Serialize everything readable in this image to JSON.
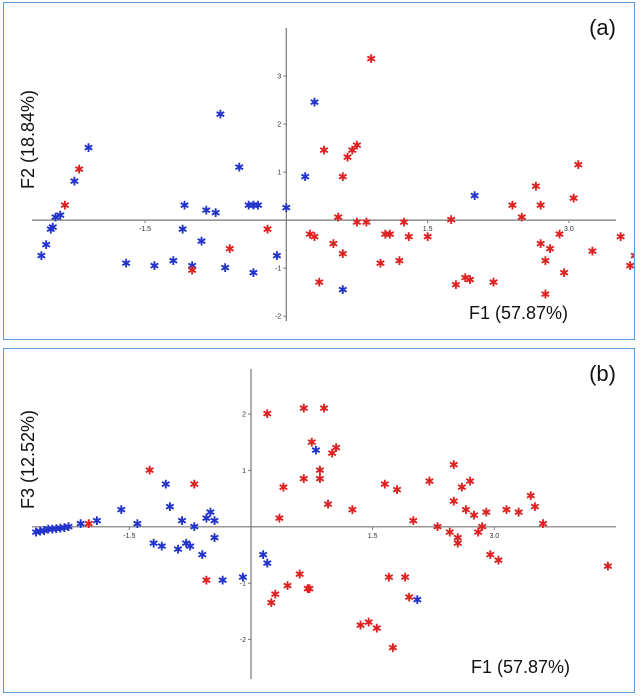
{
  "chart_data": [
    {
      "type": "scatter",
      "panel_label": "(a)",
      "xlabel": "F1 (57.87%)",
      "ylabel": "F2 (18.84%)",
      "xlim": [
        -2.7,
        3.5
      ],
      "ylim": [
        -2.1,
        4.0
      ],
      "x_ticks": [
        -1.5,
        1.5,
        3.0
      ],
      "y_ticks": [
        -2,
        -1,
        1,
        2,
        3
      ],
      "grid": false,
      "series": [
        {
          "color": "#2233cc",
          "points": [
            [
              -2.6,
              -0.75
            ],
            [
              -2.55,
              -0.52
            ],
            [
              -2.5,
              -0.2
            ],
            [
              -2.48,
              -0.15
            ],
            [
              -2.45,
              0.05
            ],
            [
              -2.4,
              0.1
            ],
            [
              -2.25,
              0.8
            ],
            [
              -2.1,
              1.5
            ],
            [
              -1.7,
              -0.9
            ],
            [
              -1.4,
              -0.95
            ],
            [
              -1.2,
              -0.85
            ],
            [
              -1.1,
              -0.2
            ],
            [
              -1.08,
              0.3
            ],
            [
              -1.0,
              -0.95
            ],
            [
              -0.9,
              -0.45
            ],
            [
              -0.85,
              0.2
            ],
            [
              -0.75,
              0.15
            ],
            [
              -0.7,
              2.2
            ],
            [
              -0.65,
              -1.0
            ],
            [
              -0.5,
              1.1
            ],
            [
              -0.4,
              0.3
            ],
            [
              -0.35,
              0.3
            ],
            [
              -0.3,
              0.3
            ],
            [
              -0.35,
              -1.1
            ],
            [
              -0.1,
              -0.75
            ],
            [
              0.0,
              0.25
            ],
            [
              0.2,
              0.9
            ],
            [
              0.3,
              2.45
            ],
            [
              0.6,
              -1.45
            ],
            [
              2.0,
              0.5
            ]
          ]
        },
        {
          "color": "#dd2222",
          "points": [
            [
              -2.35,
              0.3
            ],
            [
              -2.2,
              1.05
            ],
            [
              -1.0,
              -1.05
            ],
            [
              -0.6,
              -0.6
            ],
            [
              -0.2,
              -0.2
            ],
            [
              0.25,
              -0.3
            ],
            [
              0.3,
              -0.35
            ],
            [
              0.35,
              -1.3
            ],
            [
              0.4,
              1.45
            ],
            [
              0.5,
              -0.5
            ],
            [
              0.55,
              0.05
            ],
            [
              0.6,
              -0.7
            ],
            [
              0.6,
              0.9
            ],
            [
              0.65,
              1.3
            ],
            [
              0.7,
              1.45
            ],
            [
              0.75,
              1.55
            ],
            [
              0.75,
              -0.05
            ],
            [
              0.85,
              -0.05
            ],
            [
              0.9,
              3.35
            ],
            [
              1.0,
              -0.9
            ],
            [
              1.05,
              -0.3
            ],
            [
              1.1,
              -0.3
            ],
            [
              1.2,
              -0.85
            ],
            [
              1.25,
              -0.05
            ],
            [
              1.3,
              -0.35
            ],
            [
              1.5,
              -0.35
            ],
            [
              1.75,
              0.0
            ],
            [
              1.8,
              -1.35
            ],
            [
              1.9,
              -1.2
            ],
            [
              1.95,
              -1.25
            ],
            [
              2.2,
              -1.3
            ],
            [
              2.4,
              0.3
            ],
            [
              2.5,
              0.05
            ],
            [
              2.65,
              0.7
            ],
            [
              2.7,
              0.3
            ],
            [
              2.7,
              -0.5
            ],
            [
              2.75,
              -0.85
            ],
            [
              2.75,
              -1.55
            ],
            [
              2.8,
              -0.6
            ],
            [
              2.9,
              -0.3
            ],
            [
              2.95,
              -1.1
            ],
            [
              3.05,
              0.45
            ],
            [
              3.1,
              1.15
            ],
            [
              3.25,
              -0.65
            ],
            [
              3.55,
              -0.35
            ],
            [
              3.65,
              -0.95
            ],
            [
              3.7,
              -0.75
            ],
            [
              3.75,
              -0.7
            ]
          ]
        }
      ]
    },
    {
      "type": "scatter",
      "panel_label": "(b)",
      "xlabel": "F1 (57.87%)",
      "ylabel": "F3 (12.52%)",
      "xlim": [
        -2.7,
        4.5
      ],
      "ylim": [
        -2.7,
        2.8
      ],
      "x_ticks": [
        -1.5,
        1.5,
        3.0
      ],
      "y_ticks": [
        -2,
        -1,
        1,
        2
      ],
      "grid": false,
      "series": [
        {
          "color": "#2233cc",
          "points": [
            [
              -2.65,
              -0.1
            ],
            [
              -2.6,
              -0.08
            ],
            [
              -2.55,
              -0.07
            ],
            [
              -2.5,
              -0.05
            ],
            [
              -2.45,
              -0.05
            ],
            [
              -2.4,
              -0.04
            ],
            [
              -2.35,
              -0.03
            ],
            [
              -2.3,
              -0.02
            ],
            [
              -2.25,
              0.0
            ],
            [
              -2.1,
              0.05
            ],
            [
              -1.9,
              0.1
            ],
            [
              -1.6,
              0.3
            ],
            [
              -1.4,
              0.05
            ],
            [
              -1.2,
              -0.3
            ],
            [
              -1.1,
              -0.35
            ],
            [
              -1.05,
              0.75
            ],
            [
              -1.0,
              0.35
            ],
            [
              -0.9,
              -0.4
            ],
            [
              -0.85,
              0.1
            ],
            [
              -0.8,
              -0.3
            ],
            [
              -0.75,
              -0.35
            ],
            [
              -0.7,
              0.0
            ],
            [
              -0.6,
              -0.5
            ],
            [
              -0.55,
              0.15
            ],
            [
              -0.5,
              0.25
            ],
            [
              -0.45,
              -0.2
            ],
            [
              -0.45,
              0.1
            ],
            [
              -0.35,
              -0.95
            ],
            [
              -0.1,
              -0.9
            ],
            [
              0.15,
              -0.5
            ],
            [
              0.2,
              -0.65
            ],
            [
              0.8,
              1.35
            ],
            [
              2.05,
              -1.3
            ]
          ]
        },
        {
          "color": "#dd2222",
          "points": [
            [
              -2.0,
              0.05
            ],
            [
              -1.25,
              1.0
            ],
            [
              -0.7,
              0.75
            ],
            [
              -0.55,
              -0.95
            ],
            [
              0.2,
              2.0
            ],
            [
              0.25,
              -1.35
            ],
            [
              0.3,
              -1.2
            ],
            [
              0.35,
              0.15
            ],
            [
              0.4,
              0.7
            ],
            [
              0.45,
              -1.05
            ],
            [
              0.6,
              -0.85
            ],
            [
              0.65,
              0.85
            ],
            [
              0.65,
              2.1
            ],
            [
              0.7,
              -1.1
            ],
            [
              0.72,
              -1.1
            ],
            [
              0.75,
              1.5
            ],
            [
              0.85,
              0.85
            ],
            [
              0.85,
              1.0
            ],
            [
              0.9,
              2.1
            ],
            [
              0.95,
              0.4
            ],
            [
              1.0,
              1.3
            ],
            [
              1.05,
              1.4
            ],
            [
              1.25,
              0.3
            ],
            [
              1.35,
              -1.75
            ],
            [
              1.45,
              -1.7
            ],
            [
              1.55,
              -1.8
            ],
            [
              1.65,
              0.75
            ],
            [
              1.7,
              -0.9
            ],
            [
              1.75,
              -2.15
            ],
            [
              1.8,
              0.65
            ],
            [
              1.9,
              -0.9
            ],
            [
              1.95,
              -1.25
            ],
            [
              2.0,
              0.1
            ],
            [
              2.2,
              0.8
            ],
            [
              2.3,
              0.0
            ],
            [
              2.45,
              -0.1
            ],
            [
              2.5,
              1.1
            ],
            [
              2.5,
              0.45
            ],
            [
              2.55,
              -0.2
            ],
            [
              2.55,
              -0.3
            ],
            [
              2.6,
              0.7
            ],
            [
              2.65,
              0.3
            ],
            [
              2.7,
              0.8
            ],
            [
              2.75,
              0.2
            ],
            [
              2.8,
              -0.1
            ],
            [
              2.85,
              0.0
            ],
            [
              2.9,
              0.25
            ],
            [
              2.95,
              -0.5
            ],
            [
              3.05,
              -0.6
            ],
            [
              3.15,
              0.3
            ],
            [
              3.3,
              0.25
            ],
            [
              3.45,
              0.55
            ],
            [
              3.5,
              0.35
            ],
            [
              3.6,
              0.05
            ],
            [
              4.4,
              -0.7
            ]
          ]
        }
      ]
    }
  ]
}
